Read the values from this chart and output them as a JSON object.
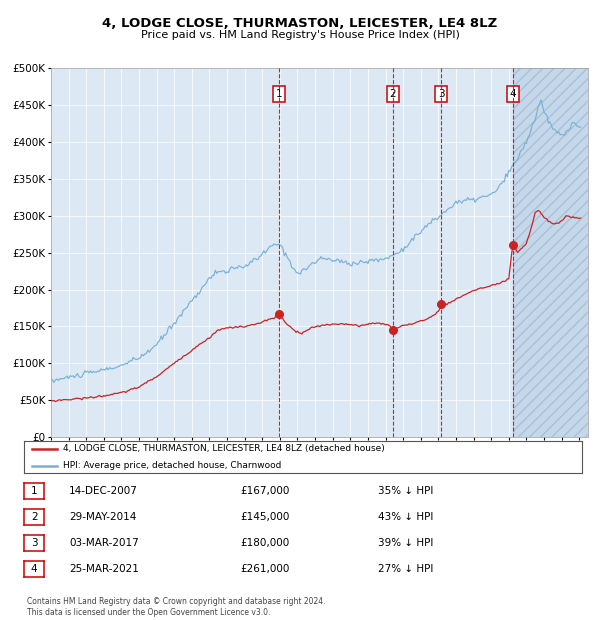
{
  "title": "4, LODGE CLOSE, THURMASTON, LEICESTER, LE4 8LZ",
  "subtitle": "Price paid vs. HM Land Registry's House Price Index (HPI)",
  "background_color": "#ffffff",
  "chart_bg": "#dce9f5",
  "hpi_color": "#7ab0d4",
  "price_color": "#cc2222",
  "ylim": [
    0,
    500000
  ],
  "yticks": [
    0,
    50000,
    100000,
    150000,
    200000,
    250000,
    300000,
    350000,
    400000,
    450000,
    500000
  ],
  "purchases": [
    {
      "year": 2007.96,
      "price": 167000,
      "label": "1"
    },
    {
      "year": 2014.41,
      "price": 145000,
      "label": "2"
    },
    {
      "year": 2017.17,
      "price": 180000,
      "label": "3"
    },
    {
      "year": 2021.23,
      "price": 261000,
      "label": "4"
    }
  ],
  "hpi_keypoints": [
    [
      1995.0,
      76000
    ],
    [
      1996.0,
      81000
    ],
    [
      1997.0,
      86000
    ],
    [
      1998.0,
      91000
    ],
    [
      1999.0,
      97000
    ],
    [
      2000.0,
      107000
    ],
    [
      2001.0,
      125000
    ],
    [
      2002.0,
      155000
    ],
    [
      2003.0,
      185000
    ],
    [
      2004.0,
      215000
    ],
    [
      2004.5,
      225000
    ],
    [
      2005.0,
      225000
    ],
    [
      2005.5,
      228000
    ],
    [
      2006.0,
      232000
    ],
    [
      2006.5,
      238000
    ],
    [
      2007.0,
      248000
    ],
    [
      2007.5,
      258000
    ],
    [
      2008.0,
      262000
    ],
    [
      2008.5,
      240000
    ],
    [
      2009.0,
      222000
    ],
    [
      2009.5,
      228000
    ],
    [
      2010.0,
      238000
    ],
    [
      2010.5,
      242000
    ],
    [
      2011.0,
      240000
    ],
    [
      2011.5,
      238000
    ],
    [
      2012.0,
      235000
    ],
    [
      2012.5,
      237000
    ],
    [
      2013.0,
      238000
    ],
    [
      2013.5,
      240000
    ],
    [
      2014.0,
      242000
    ],
    [
      2014.5,
      247000
    ],
    [
      2015.0,
      255000
    ],
    [
      2015.5,
      268000
    ],
    [
      2016.0,
      278000
    ],
    [
      2016.5,
      290000
    ],
    [
      2017.0,
      298000
    ],
    [
      2017.5,
      308000
    ],
    [
      2018.0,
      318000
    ],
    [
      2018.5,
      320000
    ],
    [
      2019.0,
      322000
    ],
    [
      2019.5,
      325000
    ],
    [
      2020.0,
      328000
    ],
    [
      2020.5,
      340000
    ],
    [
      2021.0,
      358000
    ],
    [
      2021.5,
      378000
    ],
    [
      2022.0,
      400000
    ],
    [
      2022.5,
      432000
    ],
    [
      2022.8,
      458000
    ],
    [
      2023.0,
      440000
    ],
    [
      2023.5,
      418000
    ],
    [
      2024.0,
      408000
    ],
    [
      2024.3,
      415000
    ],
    [
      2024.6,
      425000
    ],
    [
      2025.0,
      420000
    ]
  ],
  "price_keypoints": [
    [
      1995.0,
      49000
    ],
    [
      1996.0,
      51000
    ],
    [
      1997.0,
      53000
    ],
    [
      1998.0,
      56000
    ],
    [
      1999.0,
      60000
    ],
    [
      2000.0,
      68000
    ],
    [
      2001.0,
      82000
    ],
    [
      2002.0,
      100000
    ],
    [
      2003.0,
      118000
    ],
    [
      2004.0,
      135000
    ],
    [
      2004.5,
      145000
    ],
    [
      2005.0,
      148000
    ],
    [
      2005.5,
      149000
    ],
    [
      2006.0,
      150000
    ],
    [
      2006.5,
      152000
    ],
    [
      2007.0,
      156000
    ],
    [
      2007.7,
      162000
    ],
    [
      2007.96,
      167000
    ],
    [
      2008.3,
      155000
    ],
    [
      2008.8,
      145000
    ],
    [
      2009.2,
      140000
    ],
    [
      2009.8,
      148000
    ],
    [
      2010.5,
      152000
    ],
    [
      2011.0,
      153000
    ],
    [
      2011.5,
      154000
    ],
    [
      2012.0,
      152000
    ],
    [
      2012.5,
      151000
    ],
    [
      2013.0,
      153000
    ],
    [
      2013.5,
      155000
    ],
    [
      2014.2,
      152000
    ],
    [
      2014.41,
      145000
    ],
    [
      2014.7,
      148000
    ],
    [
      2015.0,
      152000
    ],
    [
      2015.5,
      153000
    ],
    [
      2016.0,
      157000
    ],
    [
      2016.5,
      162000
    ],
    [
      2017.0,
      170000
    ],
    [
      2017.17,
      180000
    ],
    [
      2017.5,
      180000
    ],
    [
      2018.0,
      187000
    ],
    [
      2018.5,
      193000
    ],
    [
      2019.0,
      199000
    ],
    [
      2019.5,
      202000
    ],
    [
      2020.0,
      205000
    ],
    [
      2020.5,
      208000
    ],
    [
      2021.0,
      215000
    ],
    [
      2021.23,
      261000
    ],
    [
      2021.5,
      250000
    ],
    [
      2022.0,
      262000
    ],
    [
      2022.3,
      285000
    ],
    [
      2022.5,
      305000
    ],
    [
      2022.7,
      308000
    ],
    [
      2023.0,
      298000
    ],
    [
      2023.3,
      292000
    ],
    [
      2023.6,
      288000
    ],
    [
      2024.0,
      293000
    ],
    [
      2024.3,
      300000
    ],
    [
      2024.6,
      298000
    ],
    [
      2025.0,
      297000
    ]
  ],
  "table_rows": [
    {
      "num": "1",
      "date": "14-DEC-2007",
      "price": "£167,000",
      "hpi": "35% ↓ HPI"
    },
    {
      "num": "2",
      "date": "29-MAY-2014",
      "price": "£145,000",
      "hpi": "43% ↓ HPI"
    },
    {
      "num": "3",
      "date": "03-MAR-2017",
      "price": "£180,000",
      "hpi": "39% ↓ HPI"
    },
    {
      "num": "4",
      "date": "25-MAR-2021",
      "price": "£261,000",
      "hpi": "27% ↓ HPI"
    }
  ],
  "legend_line1": "4, LODGE CLOSE, THURMASTON, LEICESTER, LE4 8LZ (detached house)",
  "legend_line2": "HPI: Average price, detached house, Charnwood",
  "footer": "Contains HM Land Registry data © Crown copyright and database right 2024.\nThis data is licensed under the Open Government Licence v3.0."
}
